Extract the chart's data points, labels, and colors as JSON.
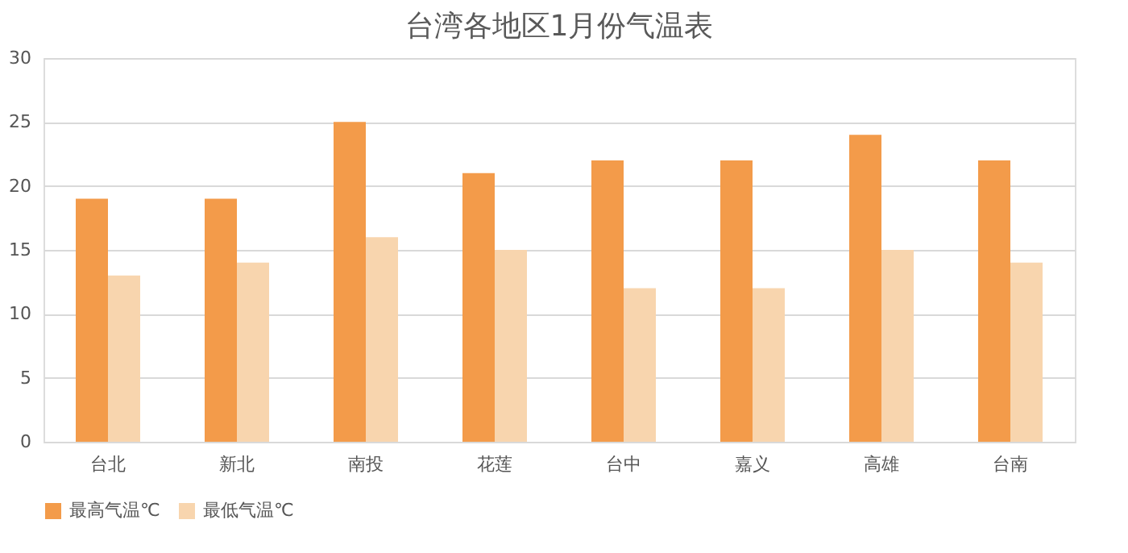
{
  "chart_data": {
    "type": "bar",
    "title": "台湾各地区1月份气温表",
    "categories": [
      "台北",
      "新北",
      "南投",
      "花莲",
      "台中",
      "嘉义",
      "高雄",
      "台南"
    ],
    "series": [
      {
        "name": "最高气温℃",
        "color": "#f39b4a",
        "values": [
          19,
          19,
          25,
          21,
          22,
          22,
          24,
          22
        ]
      },
      {
        "name": "最低气温℃",
        "color": "#f8d5ae",
        "values": [
          13,
          14,
          16,
          15,
          12,
          12,
          15,
          14
        ]
      }
    ],
    "ylim": [
      0,
      30
    ],
    "yticks": [
      0,
      5,
      10,
      15,
      20,
      25,
      30
    ],
    "grid": "y",
    "legend": "bottom"
  }
}
